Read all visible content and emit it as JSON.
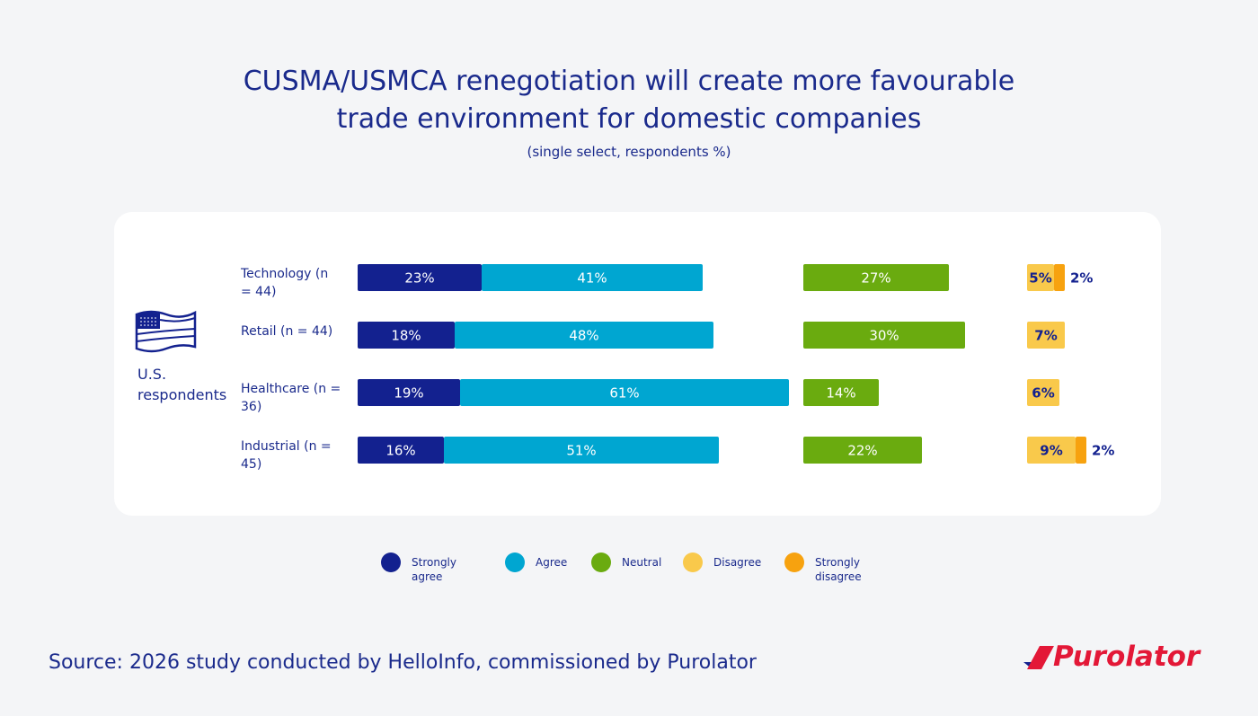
{
  "chart_data": {
    "type": "diverging-bar",
    "title": "CUSMA/USMCA renegotiation will create more favourable trade environment for domestic companies",
    "subtitle": "(single select, respondents %)",
    "group_label": "U.S. respondents",
    "categories": [
      "Technology (n = 44)",
      "Retail (n = 44)",
      "Healthcare (n = 36)",
      "Industrial (n = 45)"
    ],
    "series": [
      {
        "name": "Strongly agree",
        "color": "#13218f",
        "values": [
          23,
          18,
          19,
          16
        ],
        "value_labels": [
          "23%",
          "18%",
          "19%",
          "16%"
        ]
      },
      {
        "name": "Agree",
        "color": "#00a6d1",
        "values": [
          41,
          48,
          61,
          51
        ],
        "value_labels": [
          "41%",
          "48%",
          "61%",
          "51%"
        ]
      },
      {
        "name": "Neutral",
        "color": "#6aab0f",
        "values": [
          27,
          30,
          14,
          22
        ],
        "value_labels": [
          "27%",
          "30%",
          "14%",
          "22%"
        ]
      },
      {
        "name": "Disagree",
        "color": "#f9c94b",
        "values": [
          5,
          7,
          6,
          9
        ],
        "value_labels": [
          "5%",
          "7%",
          "6%",
          "9%"
        ]
      },
      {
        "name": "Strongly disagree",
        "color": "#f7a20f",
        "values": [
          2,
          null,
          null,
          2
        ],
        "value_labels": [
          "2%",
          null,
          null,
          "2%"
        ]
      }
    ],
    "source": "Source: 2026 study conducted by HelloInfo, commissioned by Purolator",
    "logo": "Purolator"
  }
}
